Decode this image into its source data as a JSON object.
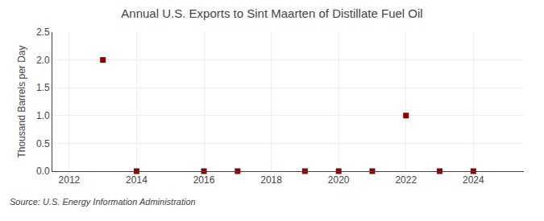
{
  "chart_data": {
    "type": "scatter",
    "title": "Annual U.S. Exports to Sint Maarten of Distillate Fuel Oil",
    "ylabel": "Thousand Barrels per Day",
    "annotations": [
      "Source: U.S. Energy Information Administration"
    ],
    "x": [
      2013,
      2014,
      2016,
      2017,
      2019,
      2020,
      2021,
      2022,
      2023,
      2024
    ],
    "values": [
      2.0,
      0.0,
      0.0,
      0.0,
      0.0,
      0.0,
      0.0,
      1.0,
      0.0,
      0.0
    ],
    "color": "#8B0000",
    "marker": "square",
    "xlim": [
      2011.5,
      2025.5
    ],
    "ylim": [
      0.0,
      2.5
    ],
    "xticks": [
      2012,
      2014,
      2016,
      2018,
      2020,
      2022,
      2024
    ],
    "yticks": [
      {
        "value": 0.0,
        "label": "0.0"
      },
      0.5,
      {
        "value": 1.0,
        "label": "1.0"
      },
      1.5,
      {
        "value": 2.0,
        "label": "2.0"
      },
      2.5
    ],
    "grid": true
  }
}
